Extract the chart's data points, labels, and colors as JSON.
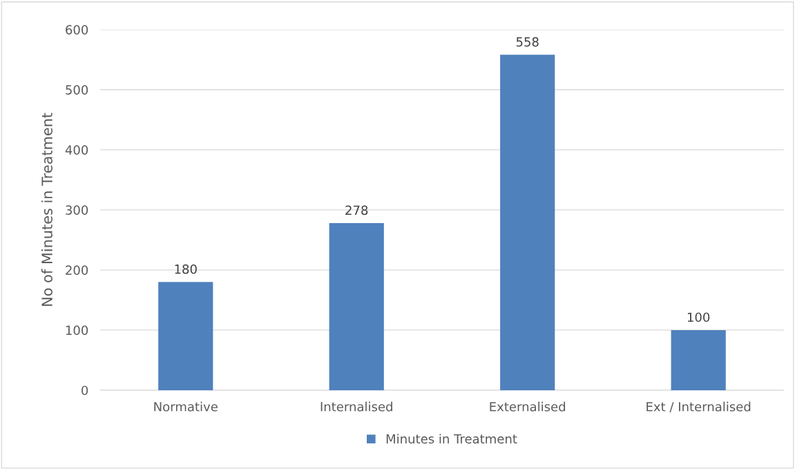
{
  "chart_data": {
    "type": "bar",
    "ylabel": "No of Minutes in Treatment",
    "categories": [
      "Normative",
      "Internalised",
      "Externalised",
      "Ext / Internalised"
    ],
    "series": [
      {
        "name": "Minutes in Treatment",
        "color": "#4f81bd",
        "values": [
          180,
          278,
          558,
          100
        ]
      }
    ],
    "ylim": [
      0,
      600
    ],
    "yticks": [
      0,
      100,
      200,
      300,
      400,
      500,
      600
    ],
    "grid": "y",
    "legend": "bottom",
    "data_labels": true
  }
}
